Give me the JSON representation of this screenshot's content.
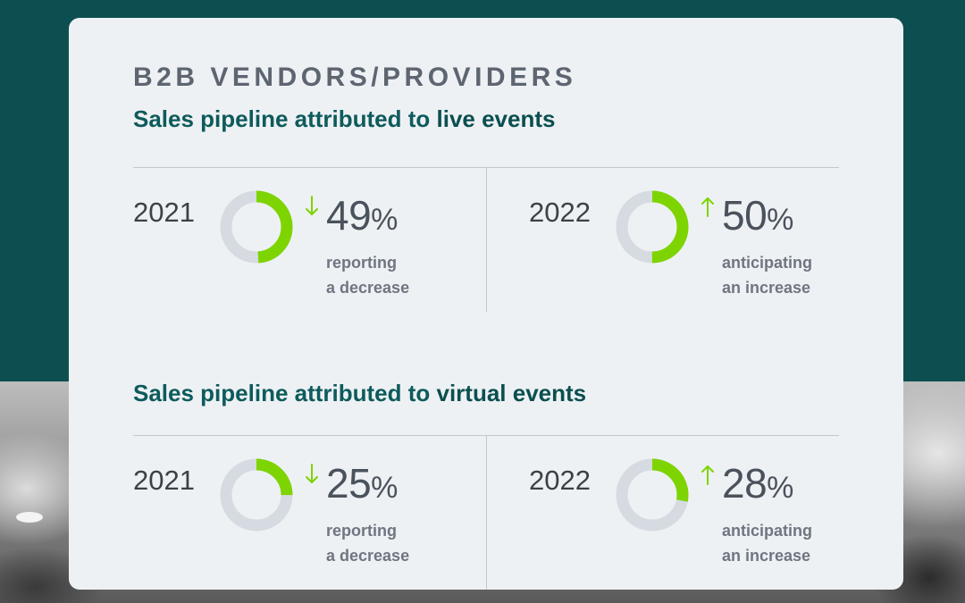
{
  "card": {
    "title": "B2B VENDORS/PROVIDERS"
  },
  "sections": [
    {
      "prefix": "Sales pipeline attributed to ",
      "emphasis": "live events"
    },
    {
      "prefix": "Sales pipeline attributed to ",
      "emphasis": "virtual events"
    }
  ],
  "colors": {
    "accent": "#7dd400",
    "track": "#d5dbe0",
    "teal": "#0e5b5c"
  },
  "chart_data": [
    {
      "type": "pie",
      "title": "Sales pipeline attributed to live events",
      "stats": [
        {
          "year": "2021",
          "value": 49,
          "value_label": "49",
          "unit": "%",
          "direction": "down",
          "arrow_icon": "arrow-down-icon",
          "desc_line1": "reporting",
          "desc_line2": "a decrease"
        },
        {
          "year": "2022",
          "value": 50,
          "value_label": "50",
          "unit": "%",
          "direction": "up",
          "arrow_icon": "arrow-up-icon",
          "desc_line1": "anticipating",
          "desc_line2": "an increase"
        }
      ]
    },
    {
      "type": "pie",
      "title": "Sales pipeline attributed to virtual events",
      "stats": [
        {
          "year": "2021",
          "value": 25,
          "value_label": "25",
          "unit": "%",
          "direction": "down",
          "arrow_icon": "arrow-down-icon",
          "desc_line1": "reporting",
          "desc_line2": "a decrease"
        },
        {
          "year": "2022",
          "value": 28,
          "value_label": "28",
          "unit": "%",
          "direction": "up",
          "arrow_icon": "arrow-up-icon",
          "desc_line1": "anticipating",
          "desc_line2": "an increase"
        }
      ]
    }
  ]
}
